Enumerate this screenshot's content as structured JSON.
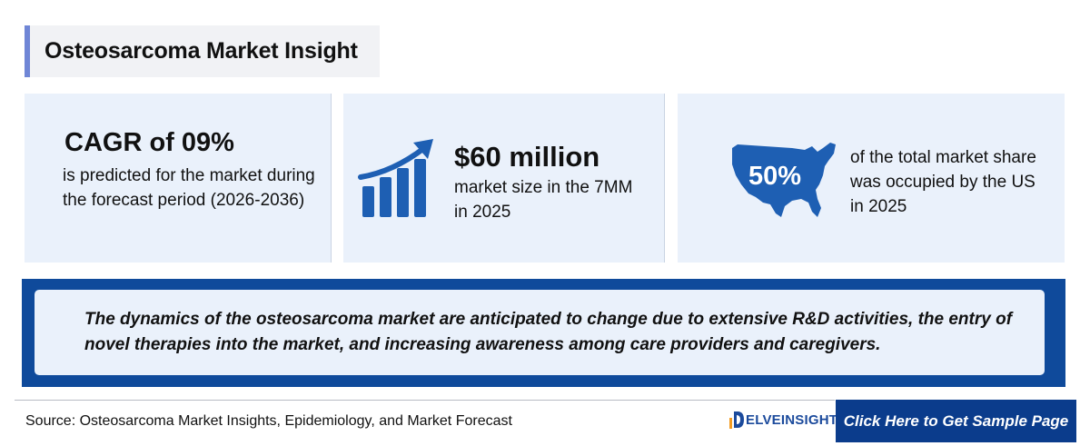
{
  "header": {
    "title": "Osteosarcoma Market Insight"
  },
  "cards": [
    {
      "headline": "CAGR of 09%",
      "text": "is predicted for the market during the forecast period (2026-2036)",
      "icon": "none"
    },
    {
      "headline": "$60 million",
      "text": "market size in the 7MM in 2025",
      "icon": "growth-bar-chart-icon"
    },
    {
      "headline": "50%",
      "text": "of the total market share was occupied by the US in 2025",
      "icon": "us-map-icon"
    }
  ],
  "banner": {
    "text": "The dynamics of the osteosarcoma market are anticipated to change due to extensive R&D activities, the entry of novel therapies into the market, and increasing awareness among care providers and caregivers."
  },
  "footer": {
    "source": "Source: Osteosarcoma Market Insights, Epidemiology, and Market Forecast",
    "logo_text": "ELVEINSIGHT",
    "cta_label": "Click Here to Get Sample Page"
  },
  "colors": {
    "accent": "#6f86d6",
    "brand_blue": "#0f4a9b",
    "card_bg": "#eaf1fb",
    "icon_blue": "#1e5fb3"
  }
}
